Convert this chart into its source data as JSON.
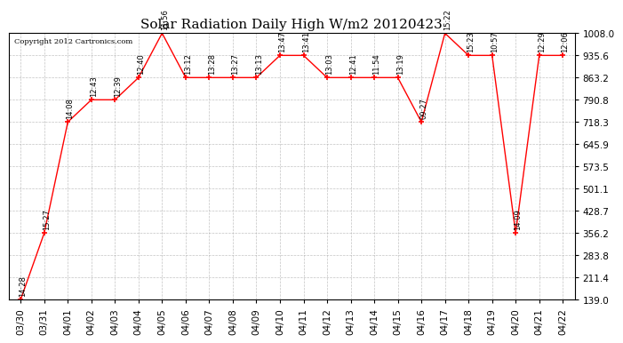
{
  "title": "Solar Radiation Daily High W/m2 20120423",
  "copyright": "Copyright 2012 Cartronics.com",
  "x_labels": [
    "03/30",
    "03/31",
    "04/01",
    "04/02",
    "04/03",
    "04/04",
    "04/05",
    "04/06",
    "04/07",
    "04/08",
    "04/09",
    "04/10",
    "04/11",
    "04/12",
    "04/13",
    "04/14",
    "04/15",
    "04/16",
    "04/17",
    "04/18",
    "04/19",
    "04/20",
    "04/21",
    "04/22"
  ],
  "y_values": [
    139.0,
    356.2,
    718.3,
    790.8,
    790.8,
    863.2,
    1008.0,
    863.2,
    863.2,
    863.2,
    863.2,
    935.6,
    935.6,
    863.2,
    863.2,
    863.2,
    863.2,
    718.3,
    1008.0,
    935.6,
    935.6,
    356.2,
    935.6,
    935.6
  ],
  "time_labels": [
    "14:28",
    "15:27",
    "14:08",
    "12:43",
    "12:39",
    "12:40",
    "11:56",
    "13:12",
    "13:28",
    "13:27",
    "13:13",
    "13:47",
    "13:41",
    "13:03",
    "12:41",
    "11:54",
    "13:19",
    "09:27",
    "15:22",
    "15:23",
    "10:57",
    "14:09",
    "12:29",
    "12:06"
  ],
  "y_ticks": [
    139.0,
    211.4,
    283.8,
    356.2,
    428.7,
    501.1,
    573.5,
    645.9,
    718.3,
    790.8,
    863.2,
    935.6,
    1008.0
  ],
  "line_color": "#ff0000",
  "marker_color": "#ff0000",
  "bg_color": "#ffffff",
  "grid_color": "#aaaaaa",
  "title_fontsize": 11,
  "copyright_fontsize": 6,
  "label_fontsize": 6,
  "tick_fontsize": 7.5
}
